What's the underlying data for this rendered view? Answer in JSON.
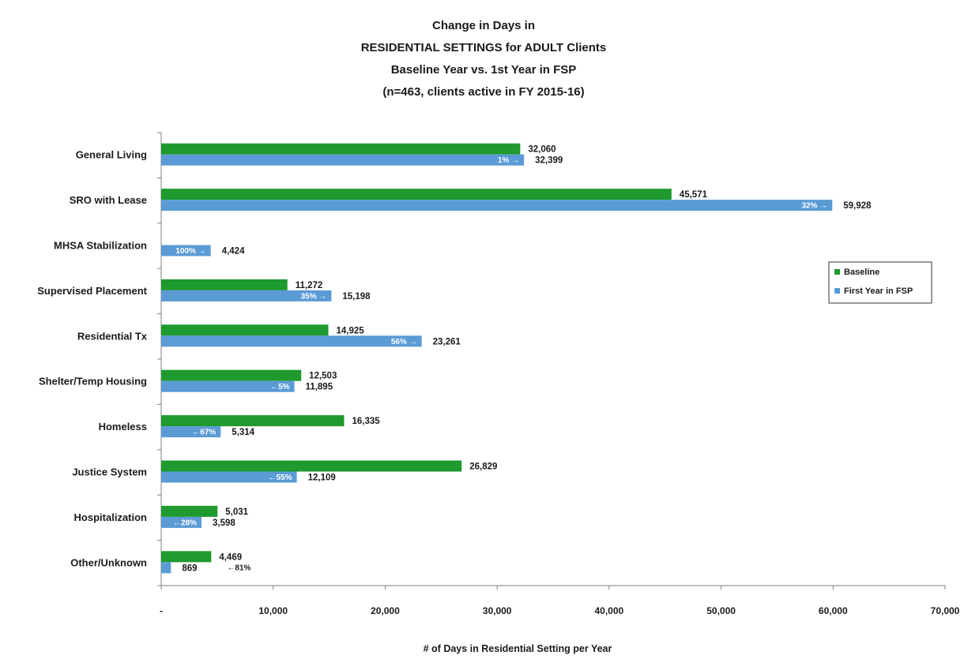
{
  "chart_data": {
    "type": "bar",
    "orientation": "horizontal",
    "title_lines": [
      "Change in Days in",
      "RESIDENTIAL SETTINGS for ADULT Clients",
      "Baseline Year vs. 1st Year in FSP",
      "(n=463, clients active in FY 2015-16)"
    ],
    "xlabel": "# of Days in Residential Setting per Year",
    "xlim": [
      0,
      70000
    ],
    "x_ticks": [
      0,
      10000,
      20000,
      30000,
      40000,
      50000,
      60000,
      70000
    ],
    "x_tick_labels": [
      "-",
      "10,000",
      "20,000",
      "30,000",
      "40,000",
      "50,000",
      "60,000",
      "70,000"
    ],
    "categories": [
      "General Living",
      "SRO with Lease",
      "MHSA Stabilization",
      "Supervised Placement",
      "Residential Tx",
      "Shelter/Temp Housing",
      "Homeless",
      "Justice System",
      "Hospitalization",
      "Other/Unknown"
    ],
    "series": [
      {
        "name": "Baseline",
        "color": "#1e9a2e",
        "values": [
          32060,
          45571,
          0,
          11272,
          14925,
          12503,
          16335,
          26829,
          5031,
          4469
        ],
        "labels": [
          "32,060",
          "45,571",
          "",
          "11,272",
          "14,925",
          "12,503",
          "16,335",
          "26,829",
          "5,031",
          "4,469"
        ]
      },
      {
        "name": "First Year in FSP",
        "color": "#5b9bd5",
        "values": [
          32399,
          59928,
          4424,
          15198,
          23261,
          11895,
          5314,
          12109,
          3598,
          869
        ],
        "labels": [
          "32,399",
          "59,928",
          "4,424",
          "15,198",
          "23,261",
          "11,895",
          "5,314",
          "12,109",
          "3,598",
          "869"
        ]
      }
    ],
    "change_labels": [
      "1% →",
      "32% →",
      "100% →",
      "35% →",
      "56% →",
      "←5%",
      "←67%",
      "←55%",
      "←28%",
      "←81%"
    ],
    "change_label_inside": [
      true,
      true,
      true,
      true,
      true,
      true,
      true,
      true,
      true,
      false
    ],
    "grid": false,
    "legend_position": "right"
  }
}
